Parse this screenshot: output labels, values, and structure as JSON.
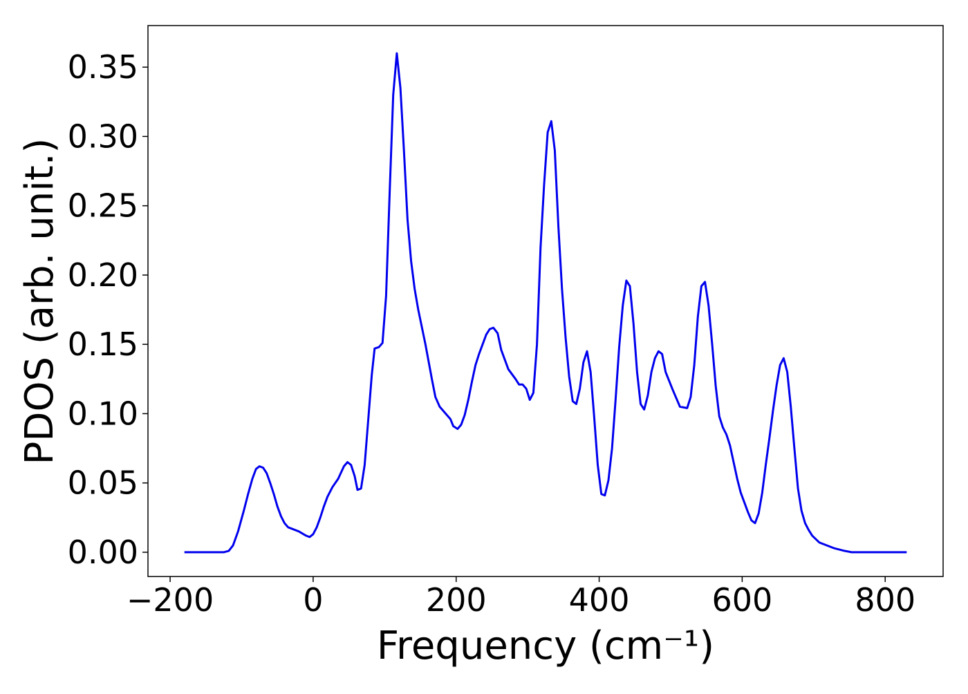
{
  "chart_data": {
    "type": "line",
    "xlabel": "Frequency (cm⁻¹)",
    "ylabel": "PDOS (arb. unit.)",
    "xlim": [
      -231,
      881
    ],
    "ylim": [
      -0.0175,
      0.38
    ],
    "xticks": [
      {
        "value": -200,
        "label": "−200"
      },
      0,
      200,
      400,
      600,
      800
    ],
    "yticks": [
      {
        "value": 0,
        "label": "0.00"
      },
      {
        "value": 0.05,
        "label": "0.05"
      },
      {
        "value": 0.1,
        "label": "0.10"
      },
      {
        "value": 0.15,
        "label": "0.15"
      },
      {
        "value": 0.2,
        "label": "0.20"
      },
      {
        "value": 0.25,
        "label": "0.25"
      },
      {
        "value": 0.3,
        "label": "0.30"
      },
      {
        "value": 0.35,
        "label": "0.35"
      }
    ],
    "grid": false,
    "series": [
      {
        "color": "#0000ee",
        "x": [
          -180,
          -125,
          -118,
          -112,
          -105,
          -97,
          -91,
          -85,
          -80,
          -75,
          -70,
          -65,
          -60,
          -55,
          -50,
          -45,
          -40,
          -35,
          -30,
          -20,
          -10,
          -5,
          0,
          5,
          10,
          15,
          20,
          27,
          35,
          43,
          48,
          53,
          58,
          62,
          67,
          72,
          77,
          82,
          86,
          92,
          97,
          102,
          107,
          112,
          117,
          122,
          127,
          132,
          137,
          142,
          147,
          157,
          166,
          171,
          177,
          187,
          192,
          196,
          202,
          207,
          212,
          217,
          222,
          227,
          232,
          237,
          242,
          247,
          252,
          258,
          263,
          273,
          283,
          288,
          293,
          298,
          303,
          308,
          313,
          318,
          323,
          328,
          333,
          338,
          343,
          348,
          353,
          358,
          363,
          368,
          373,
          378,
          383,
          388,
          393,
          398,
          403,
          408,
          413,
          418,
          423,
          428,
          433,
          438,
          443,
          448,
          453,
          458,
          463,
          468,
          473,
          478,
          483,
          488,
          493,
          503,
          513,
          523,
          528,
          533,
          538,
          543,
          548,
          553,
          558,
          563,
          568,
          573,
          578,
          583,
          588,
          593,
          598,
          603,
          608,
          613,
          618,
          623,
          628,
          633,
          638,
          643,
          648,
          653,
          658,
          663,
          668,
          673,
          678,
          683,
          688,
          693,
          698,
          708,
          728,
          743,
          753,
          763,
          830
        ],
        "values": [
          0,
          0,
          0.001,
          0.005,
          0.015,
          0.03,
          0.042,
          0.053,
          0.06,
          0.062,
          0.061,
          0.057,
          0.05,
          0.042,
          0.033,
          0.026,
          0.021,
          0.018,
          0.017,
          0.015,
          0.012,
          0.011,
          0.013,
          0.018,
          0.025,
          0.033,
          0.04,
          0.047,
          0.053,
          0.062,
          0.065,
          0.063,
          0.055,
          0.045,
          0.046,
          0.063,
          0.095,
          0.128,
          0.147,
          0.148,
          0.151,
          0.185,
          0.26,
          0.33,
          0.36,
          0.335,
          0.29,
          0.24,
          0.21,
          0.19,
          0.175,
          0.15,
          0.125,
          0.112,
          0.105,
          0.099,
          0.096,
          0.091,
          0.089,
          0.092,
          0.099,
          0.11,
          0.123,
          0.135,
          0.143,
          0.15,
          0.157,
          0.161,
          0.162,
          0.158,
          0.146,
          0.132,
          0.125,
          0.121,
          0.121,
          0.118,
          0.11,
          0.115,
          0.15,
          0.22,
          0.265,
          0.303,
          0.311,
          0.29,
          0.235,
          0.19,
          0.155,
          0.127,
          0.109,
          0.107,
          0.118,
          0.137,
          0.145,
          0.13,
          0.098,
          0.063,
          0.042,
          0.041,
          0.052,
          0.075,
          0.11,
          0.148,
          0.178,
          0.196,
          0.192,
          0.165,
          0.13,
          0.107,
          0.103,
          0.113,
          0.13,
          0.14,
          0.145,
          0.143,
          0.13,
          0.117,
          0.105,
          0.104,
          0.112,
          0.135,
          0.17,
          0.192,
          0.195,
          0.178,
          0.15,
          0.12,
          0.098,
          0.09,
          0.085,
          0.077,
          0.065,
          0.053,
          0.043,
          0.036,
          0.029,
          0.023,
          0.021,
          0.028,
          0.043,
          0.063,
          0.082,
          0.102,
          0.12,
          0.135,
          0.14,
          0.13,
          0.105,
          0.075,
          0.046,
          0.03,
          0.021,
          0.016,
          0.012,
          0.007,
          0.003,
          0.001,
          0,
          0,
          0
        ]
      }
    ]
  }
}
